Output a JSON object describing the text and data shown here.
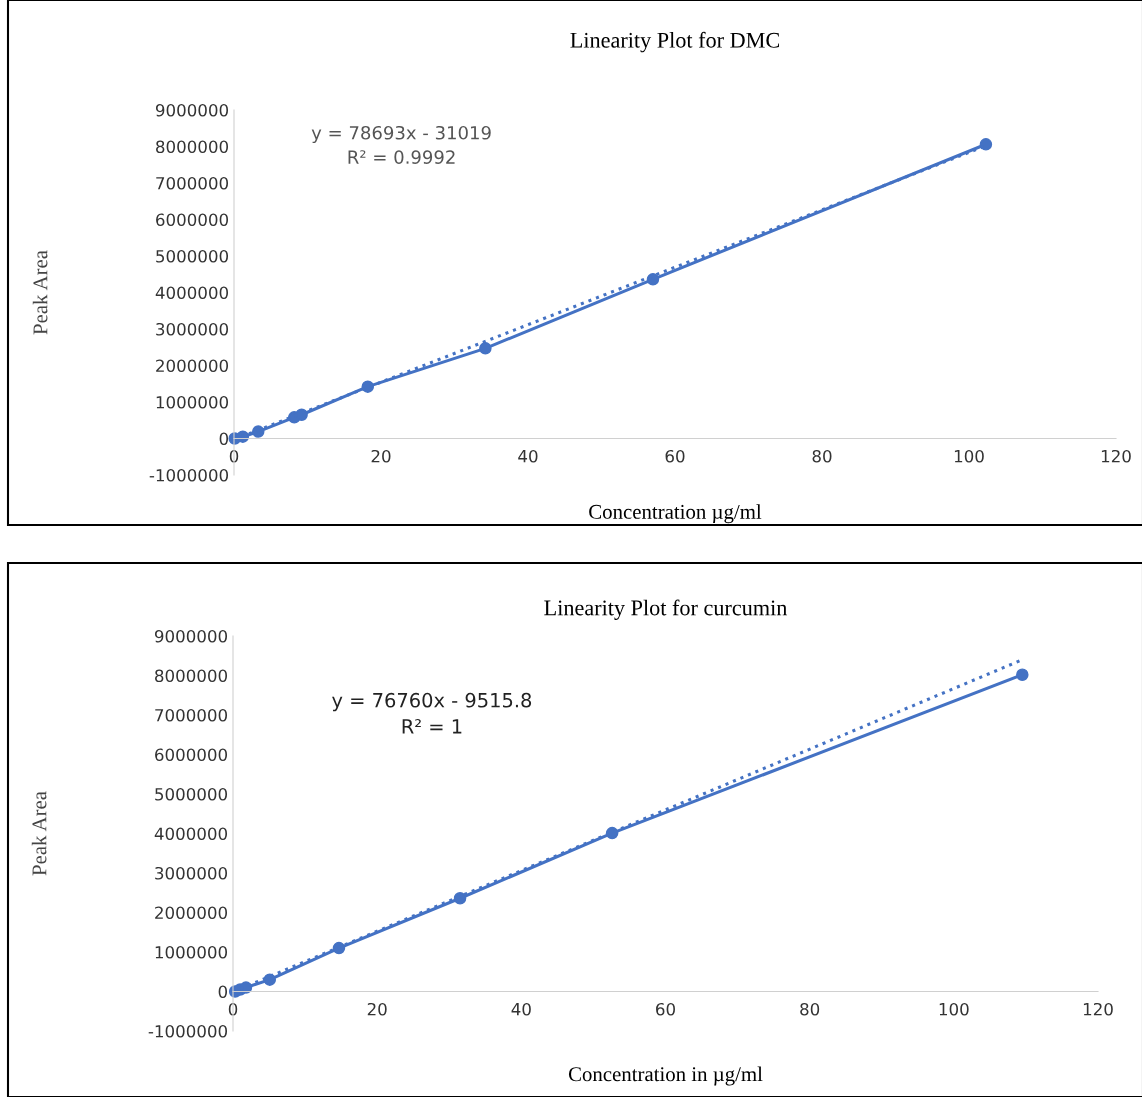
{
  "chart_data": [
    {
      "type": "line",
      "title": "Linearity Plot for DMC",
      "xlabel": "Concentration µg/ml",
      "ylabel": "Peak Area",
      "xlim": [
        0,
        120
      ],
      "xticks": [
        0,
        20,
        40,
        60,
        80,
        100,
        120
      ],
      "ylim": [
        -1000000,
        9000000
      ],
      "yticks": [
        -1000000,
        0,
        1000000,
        2000000,
        3000000,
        4000000,
        5000000,
        6000000,
        7000000,
        8000000,
        9000000
      ],
      "grid": false,
      "legend": false,
      "annotations": [
        "y = 78693x - 31019\nR² = 0.9992"
      ],
      "series": [
        {
          "color": "#4472c4",
          "marker": "circle",
          "line_style": "solid",
          "x": [
            0.1,
            1.2,
            3.3,
            8.2,
            9.2,
            18.2,
            34.2,
            57,
            102.3
          ],
          "values": [
            0,
            50000,
            190000,
            580000,
            650000,
            1420000,
            2470000,
            4360000,
            8060000
          ]
        },
        {
          "type": "line",
          "color": "#4472c4",
          "marker": "none",
          "line_style": "dotted",
          "x": [
            0,
            102.3
          ],
          "values": [
            -30000,
            8020000
          ]
        }
      ]
    },
    {
      "type": "line",
      "title": "Linearity Plot for curcumin",
      "xlabel": "Concentration in µg/ml",
      "ylabel": "Peak Area",
      "xlim": [
        0,
        120
      ],
      "xticks": [
        0,
        20,
        40,
        60,
        80,
        100,
        120
      ],
      "ylim": [
        -1000000,
        9000000
      ],
      "yticks": [
        -1000000,
        0,
        1000000,
        2000000,
        3000000,
        4000000,
        5000000,
        6000000,
        7000000,
        8000000,
        9000000
      ],
      "grid": false,
      "legend": false,
      "annotations": [
        "y = 76760x - 9515.8\nR² = 1"
      ],
      "series": [
        {
          "color": "#4472c4",
          "marker": "circle",
          "line_style": "solid",
          "x": [
            0.3,
            1,
            1.8,
            5.1,
            14.7,
            31.5,
            52.6,
            109.5
          ],
          "values": [
            0,
            50000,
            100000,
            300000,
            1100000,
            2360000,
            4010000,
            8020000
          ]
        },
        {
          "type": "line",
          "color": "#4472c4",
          "marker": "none",
          "line_style": "dotted",
          "x": [
            0,
            109.5
          ],
          "values": [
            -10000,
            8400000
          ]
        }
      ]
    }
  ]
}
